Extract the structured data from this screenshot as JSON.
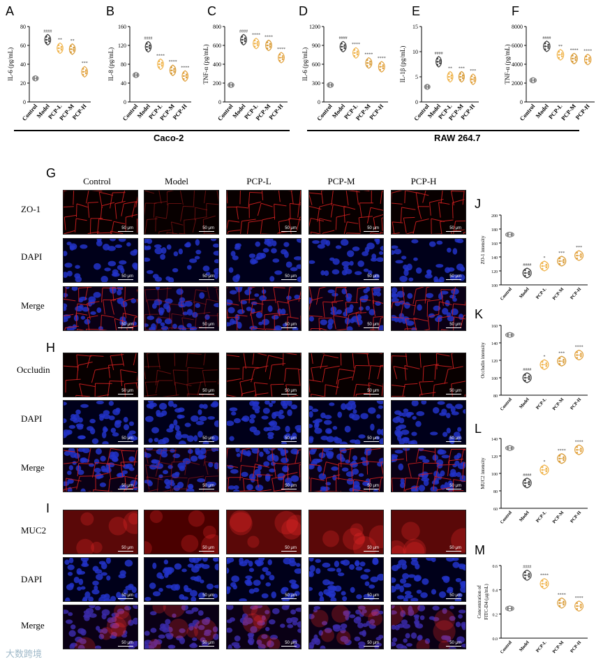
{
  "panel_labels": {
    "A": "A",
    "B": "B",
    "C": "C",
    "D": "D",
    "E": "E",
    "F": "F",
    "G": "G",
    "H": "H",
    "I": "I",
    "J": "J",
    "K": "K",
    "L": "L",
    "M": "M"
  },
  "groups": [
    "Control",
    "Model",
    "PCP-L",
    "PCP-M",
    "PCP-H"
  ],
  "top_groups": {
    "caco": "Caco-2",
    "raw": "RAW 264.7"
  },
  "micro": {
    "columns": [
      "Control",
      "Model",
      "PCP-L",
      "PCP-M",
      "PCP-H"
    ],
    "rows_G": [
      "ZO-1",
      "DAPI",
      "Merge"
    ],
    "rows_H": [
      "Occludin",
      "DAPI",
      "Merge"
    ],
    "rows_I": [
      "MUC2",
      "DAPI",
      "Merge"
    ],
    "scale": "50 μm"
  },
  "watermark": "大数跨境",
  "colors": {
    "control": "#7f7f7f",
    "model": "#3a3a3a",
    "pcp": "#f0b44c",
    "pcp_m": "#d89a34",
    "pcp_h": "#e2a23e"
  },
  "chart_data": [
    {
      "id": "A",
      "type": "violin",
      "ylabel": "IL-6 (pg/mL)",
      "ylim": [
        0,
        80
      ],
      "yticks": [
        0,
        20,
        40,
        60,
        80
      ],
      "categories": [
        "Control",
        "Model",
        "PCP-L",
        "PCP-M",
        "PCP-H"
      ],
      "values": [
        25,
        66,
        57,
        56,
        32
      ],
      "annotations": [
        "",
        "####",
        "**",
        "**",
        "***"
      ]
    },
    {
      "id": "B",
      "type": "violin",
      "ylabel": "IL-8 (pg/mL)",
      "ylim": [
        0,
        160
      ],
      "yticks": [
        0,
        40,
        80,
        120,
        160
      ],
      "categories": [
        "Control",
        "Model",
        "PCP-L",
        "PCP-M",
        "PCP-H"
      ],
      "values": [
        57,
        117,
        80,
        67,
        55
      ],
      "annotations": [
        "",
        "####",
        "****",
        "****",
        "****"
      ]
    },
    {
      "id": "C",
      "type": "violin",
      "ylabel": "TNF-α (pg/mL)",
      "ylim": [
        0,
        800
      ],
      "yticks": [
        0,
        200,
        400,
        600,
        800
      ],
      "categories": [
        "Control",
        "Model",
        "PCP-L",
        "PCP-M",
        "PCP-H"
      ],
      "values": [
        180,
        660,
        620,
        600,
        470
      ],
      "annotations": [
        "",
        "####",
        "****",
        "****",
        "****"
      ]
    },
    {
      "id": "D",
      "type": "violin",
      "ylabel": "IL-6 (pg/mL)",
      "ylim": [
        0,
        1200
      ],
      "yticks": [
        0,
        300,
        600,
        900,
        1200
      ],
      "categories": [
        "Control",
        "Model",
        "PCP-L",
        "PCP-M",
        "PCP-H"
      ],
      "values": [
        270,
        880,
        780,
        620,
        560
      ],
      "annotations": [
        "",
        "####",
        "****",
        "****",
        "****"
      ]
    },
    {
      "id": "E",
      "type": "violin",
      "ylabel": "IL-1β (pg/mL)",
      "ylim": [
        0,
        15
      ],
      "yticks": [
        0,
        5,
        10,
        15
      ],
      "categories": [
        "Control",
        "Model",
        "PCP-L",
        "PCP-M",
        "PCP-H"
      ],
      "values": [
        3,
        8,
        5,
        5,
        4.5
      ],
      "annotations": [
        "",
        "####",
        "**",
        "***",
        "***"
      ]
    },
    {
      "id": "F",
      "type": "violin",
      "ylabel": "TNF-α (pg/mL)",
      "ylim": [
        0,
        8000
      ],
      "yticks": [
        0,
        2000,
        4000,
        6000,
        8000
      ],
      "categories": [
        "Control",
        "Model",
        "PCP-L",
        "PCP-M",
        "PCP-H"
      ],
      "values": [
        2300,
        5900,
        5000,
        4600,
        4500
      ],
      "annotations": [
        "",
        "####",
        "**",
        "****",
        "****"
      ]
    },
    {
      "id": "J",
      "type": "violin",
      "ylabel": "ZO-1 intensity",
      "ylim": [
        100,
        200
      ],
      "yticks": [
        100,
        120,
        140,
        160,
        180,
        200
      ],
      "categories": [
        "Control",
        "Model",
        "PCP-L",
        "PCP-M",
        "PCP-H"
      ],
      "values": [
        172,
        117,
        127,
        134,
        142
      ],
      "annotations": [
        "",
        "####",
        "*",
        "***",
        "***"
      ]
    },
    {
      "id": "K",
      "type": "violin",
      "ylabel": "Occludin intensity",
      "ylim": [
        80,
        160
      ],
      "yticks": [
        80,
        100,
        120,
        140,
        160
      ],
      "categories": [
        "Control",
        "Model",
        "PCP-L",
        "PCP-M",
        "PCP-H"
      ],
      "values": [
        149,
        100,
        115,
        119,
        126
      ],
      "annotations": [
        "",
        "####",
        "*",
        "***",
        "****"
      ]
    },
    {
      "id": "L",
      "type": "violin",
      "ylabel": "MUC2 intensity",
      "ylim": [
        60,
        140
      ],
      "yticks": [
        60,
        80,
        100,
        120,
        140
      ],
      "categories": [
        "Control",
        "Model",
        "PCP-L",
        "PCP-M",
        "PCP-H"
      ],
      "values": [
        129,
        89,
        104,
        117,
        127
      ],
      "annotations": [
        "",
        "####",
        "*",
        "****",
        "****"
      ]
    },
    {
      "id": "M",
      "type": "violin",
      "ylabel": "Concentration of FITC-D4 (μg/mL)",
      "ylim": [
        0,
        0.6
      ],
      "yticks": [
        0.0,
        0.2,
        0.4,
        0.6
      ],
      "categories": [
        "Control",
        "Model",
        "PCP-L",
        "PCP-M",
        "PCP-H"
      ],
      "values": [
        0.245,
        0.52,
        0.45,
        0.29,
        0.265
      ],
      "annotations": [
        "",
        "####",
        "****",
        "****",
        "****"
      ]
    }
  ]
}
